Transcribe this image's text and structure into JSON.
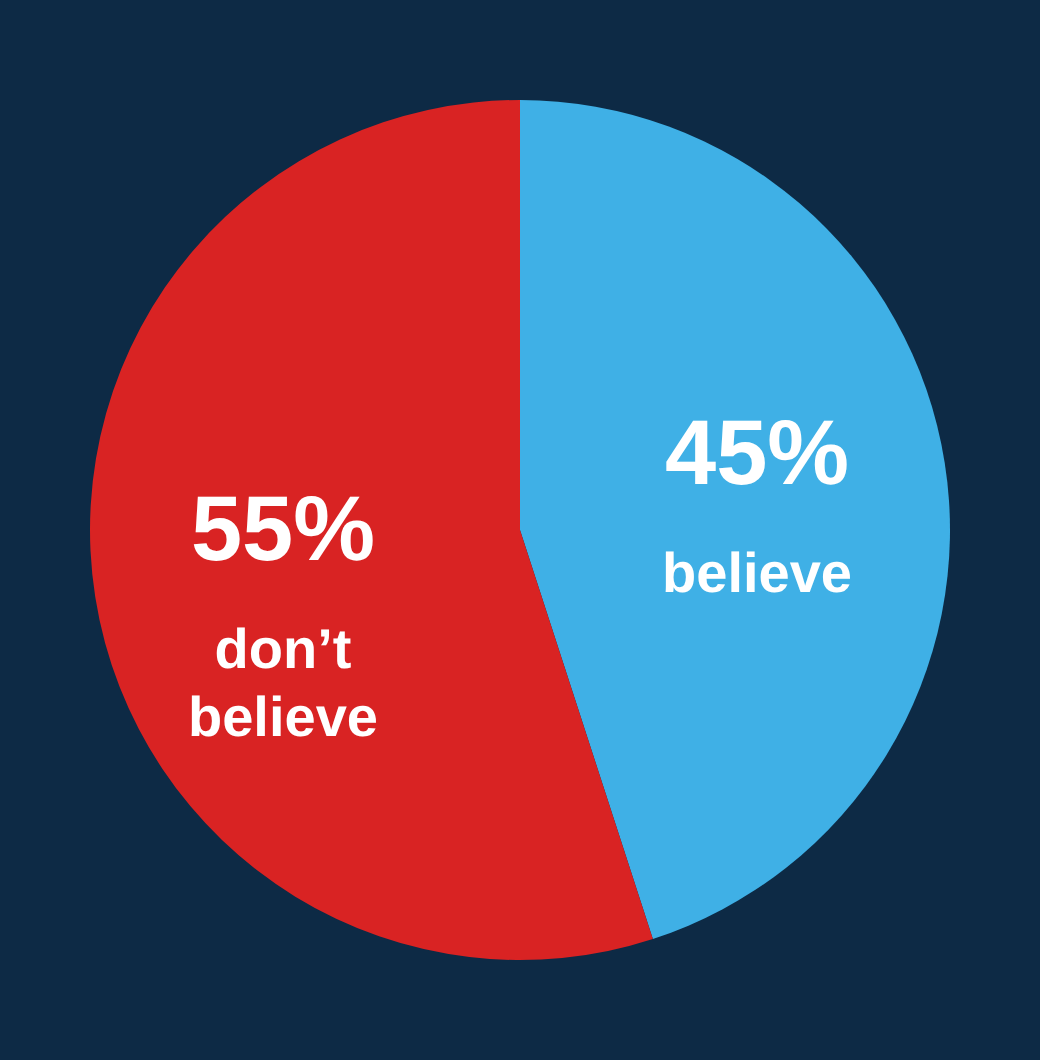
{
  "chart_data": {
    "type": "pie",
    "categories": [
      "believe",
      "don’t believe"
    ],
    "values": [
      45,
      55
    ],
    "colors": [
      "#3fb0e6",
      "#d92323"
    ],
    "value_labels": [
      "45%",
      "55%"
    ],
    "legend": false
  }
}
